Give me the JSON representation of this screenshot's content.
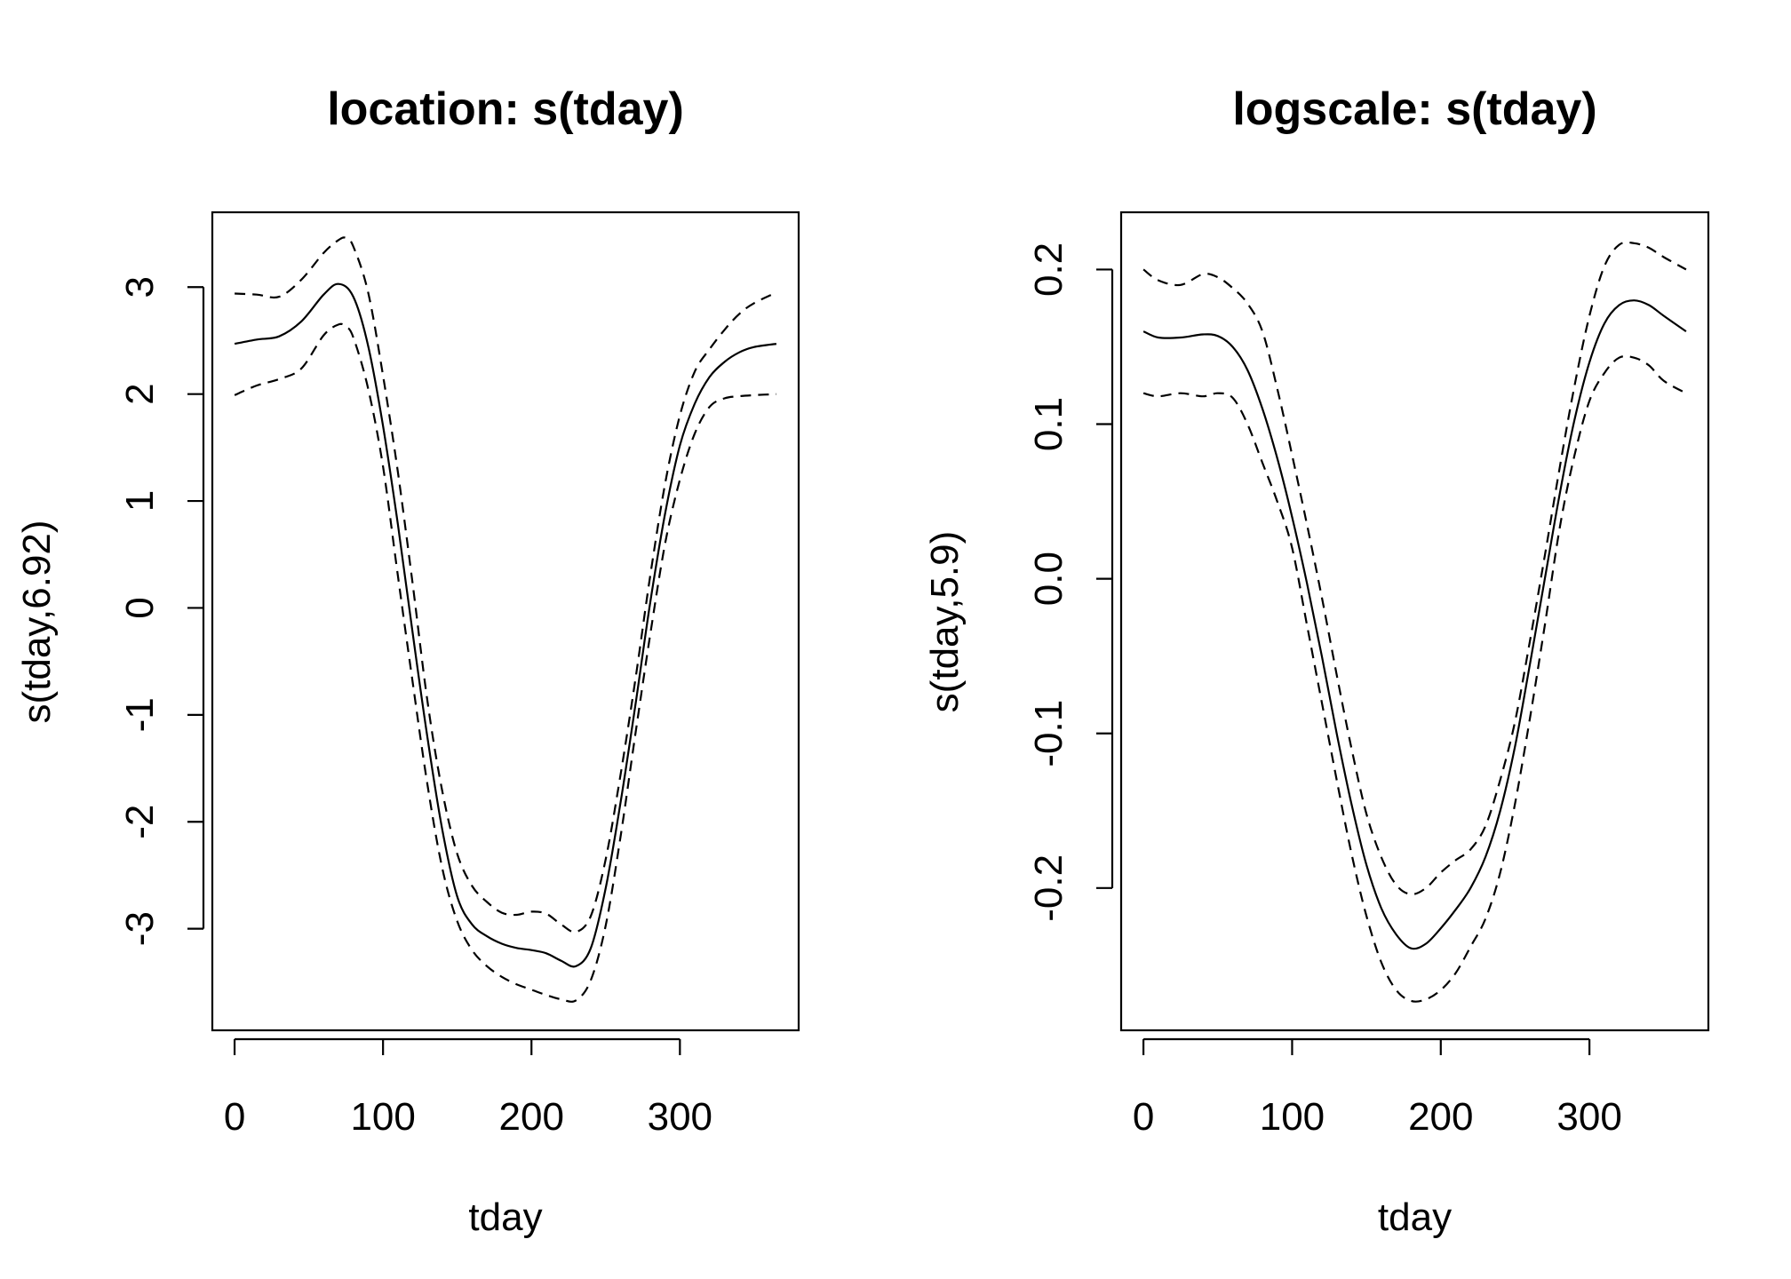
{
  "chart_data": [
    {
      "type": "line",
      "title": "location: s(tday)",
      "xlabel": "tday",
      "ylabel": "s(tday,6.92)",
      "xlim": [
        -15,
        380
      ],
      "ylim": [
        -3.95,
        3.7
      ],
      "xticks": [
        0,
        100,
        200,
        300
      ],
      "xtick_labels": [
        "0",
        "100",
        "200",
        "300"
      ],
      "yticks": [
        -3,
        -2,
        -1,
        0,
        1,
        2,
        3
      ],
      "ytick_labels": [
        "-3",
        "-2",
        "-1",
        "0",
        "1",
        "2",
        "3"
      ],
      "grid": false,
      "legend": "none",
      "series": [
        {
          "role": "estimate",
          "style": "solid",
          "x": [
            0,
            15,
            30,
            45,
            60,
            70,
            80,
            90,
            100,
            110,
            120,
            130,
            140,
            150,
            160,
            170,
            180,
            190,
            200,
            210,
            220,
            230,
            240,
            250,
            260,
            270,
            280,
            290,
            300,
            310,
            320,
            330,
            340,
            350,
            365
          ],
          "y": [
            2.47,
            2.51,
            2.54,
            2.68,
            2.93,
            3.03,
            2.91,
            2.45,
            1.7,
            0.78,
            -0.24,
            -1.22,
            -2.08,
            -2.7,
            -2.96,
            -3.07,
            -3.14,
            -3.18,
            -3.2,
            -3.23,
            -3.3,
            -3.35,
            -3.18,
            -2.62,
            -1.82,
            -0.91,
            0.05,
            0.88,
            1.52,
            1.91,
            2.16,
            2.3,
            2.39,
            2.44,
            2.47
          ]
        },
        {
          "role": "upper confidence band",
          "style": "dashed",
          "x": [
            0,
            15,
            30,
            45,
            60,
            70,
            75,
            80,
            90,
            100,
            110,
            120,
            130,
            140,
            150,
            160,
            170,
            180,
            190,
            200,
            210,
            220,
            230,
            240,
            250,
            260,
            270,
            280,
            290,
            300,
            310,
            320,
            330,
            340,
            350,
            365
          ],
          "y": [
            2.94,
            2.93,
            2.91,
            3.07,
            3.32,
            3.44,
            3.46,
            3.38,
            2.95,
            2.17,
            1.27,
            0.22,
            -0.88,
            -1.72,
            -2.3,
            -2.6,
            -2.75,
            -2.85,
            -2.87,
            -2.84,
            -2.86,
            -2.96,
            -3.03,
            -2.88,
            -2.35,
            -1.56,
            -0.67,
            0.3,
            1.16,
            1.8,
            2.21,
            2.42,
            2.6,
            2.75,
            2.85,
            2.95
          ]
        },
        {
          "role": "lower confidence band",
          "style": "dashed",
          "x": [
            0,
            15,
            30,
            45,
            60,
            70,
            75,
            80,
            90,
            100,
            110,
            120,
            130,
            140,
            150,
            160,
            170,
            180,
            190,
            200,
            210,
            220,
            230,
            240,
            250,
            260,
            270,
            280,
            290,
            300,
            310,
            320,
            330,
            340,
            350,
            365
          ],
          "y": [
            1.99,
            2.08,
            2.14,
            2.24,
            2.55,
            2.65,
            2.63,
            2.53,
            2.05,
            1.32,
            0.3,
            -0.7,
            -1.66,
            -2.44,
            -2.93,
            -3.2,
            -3.35,
            -3.45,
            -3.52,
            -3.57,
            -3.62,
            -3.66,
            -3.67,
            -3.48,
            -2.97,
            -2.14,
            -1.18,
            -0.25,
            0.6,
            1.2,
            1.63,
            1.88,
            1.96,
            1.98,
            1.99,
            2.0
          ]
        }
      ]
    },
    {
      "type": "line",
      "title": "logscale: s(tday)",
      "xlabel": "tday",
      "ylabel": "s(tday,5.9)",
      "xlim": [
        -15,
        380
      ],
      "ylim": [
        -0.292,
        0.237
      ],
      "xticks": [
        0,
        100,
        200,
        300
      ],
      "xtick_labels": [
        "0",
        "100",
        "200",
        "300"
      ],
      "yticks": [
        -0.2,
        -0.1,
        0.0,
        0.1,
        0.2
      ],
      "ytick_labels": [
        "-0.2",
        "-0.1",
        "0.0",
        "0.1",
        "0.2"
      ],
      "grid": false,
      "legend": "none",
      "series": [
        {
          "role": "estimate",
          "style": "solid",
          "x": [
            0,
            10,
            25,
            40,
            50,
            60,
            70,
            80,
            90,
            100,
            110,
            120,
            130,
            140,
            150,
            160,
            170,
            180,
            190,
            200,
            210,
            220,
            230,
            240,
            250,
            260,
            270,
            280,
            290,
            300,
            310,
            320,
            330,
            340,
            350,
            365
          ],
          "y": [
            0.16,
            0.156,
            0.156,
            0.158,
            0.157,
            0.15,
            0.135,
            0.11,
            0.078,
            0.04,
            -0.003,
            -0.05,
            -0.1,
            -0.146,
            -0.185,
            -0.213,
            -0.23,
            -0.239,
            -0.236,
            -0.226,
            -0.214,
            -0.2,
            -0.18,
            -0.15,
            -0.108,
            -0.055,
            0.0,
            0.055,
            0.103,
            0.14,
            0.165,
            0.177,
            0.18,
            0.177,
            0.17,
            0.16
          ]
        },
        {
          "role": "upper confidence band",
          "style": "dashed",
          "x": [
            0,
            10,
            25,
            40,
            50,
            60,
            70,
            80,
            90,
            100,
            110,
            120,
            130,
            140,
            150,
            160,
            170,
            180,
            190,
            200,
            210,
            220,
            230,
            240,
            250,
            260,
            270,
            280,
            290,
            300,
            310,
            320,
            330,
            340,
            350,
            365
          ],
          "y": [
            0.2,
            0.193,
            0.19,
            0.197,
            0.195,
            0.188,
            0.178,
            0.16,
            0.123,
            0.08,
            0.035,
            -0.012,
            -0.062,
            -0.11,
            -0.152,
            -0.18,
            -0.198,
            -0.204,
            -0.2,
            -0.19,
            -0.182,
            -0.175,
            -0.16,
            -0.13,
            -0.092,
            -0.04,
            0.015,
            0.072,
            0.125,
            0.17,
            0.202,
            0.216,
            0.217,
            0.214,
            0.208,
            0.2
          ]
        },
        {
          "role": "lower confidence band",
          "style": "dashed",
          "x": [
            0,
            10,
            25,
            40,
            50,
            60,
            70,
            80,
            90,
            100,
            110,
            120,
            130,
            140,
            150,
            160,
            170,
            180,
            190,
            200,
            210,
            220,
            230,
            240,
            250,
            260,
            270,
            280,
            290,
            300,
            310,
            320,
            330,
            340,
            350,
            365
          ],
          "y": [
            0.12,
            0.118,
            0.12,
            0.118,
            0.12,
            0.117,
            0.1,
            0.075,
            0.05,
            0.02,
            -0.03,
            -0.08,
            -0.13,
            -0.178,
            -0.218,
            -0.248,
            -0.266,
            -0.273,
            -0.272,
            -0.266,
            -0.255,
            -0.238,
            -0.22,
            -0.19,
            -0.145,
            -0.09,
            -0.03,
            0.033,
            0.08,
            0.115,
            0.133,
            0.143,
            0.143,
            0.138,
            0.128,
            0.12
          ]
        }
      ]
    }
  ]
}
